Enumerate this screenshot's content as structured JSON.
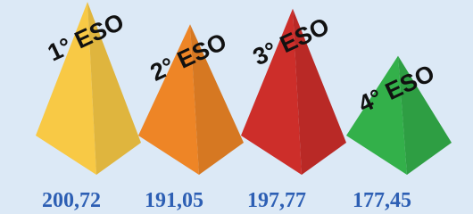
{
  "chart_data": {
    "type": "pyramid",
    "categories": [
      "1° ESO",
      "2° ESO",
      "3° ESO",
      "4° ESO"
    ],
    "values": [
      200.72,
      191.05,
      197.77,
      177.45
    ],
    "value_labels": [
      "200,72",
      "191,05",
      "197,77",
      "177,45"
    ],
    "colors": [
      "#f8c945",
      "#ee8526",
      "#cd2e2a",
      "#33b04a"
    ]
  }
}
